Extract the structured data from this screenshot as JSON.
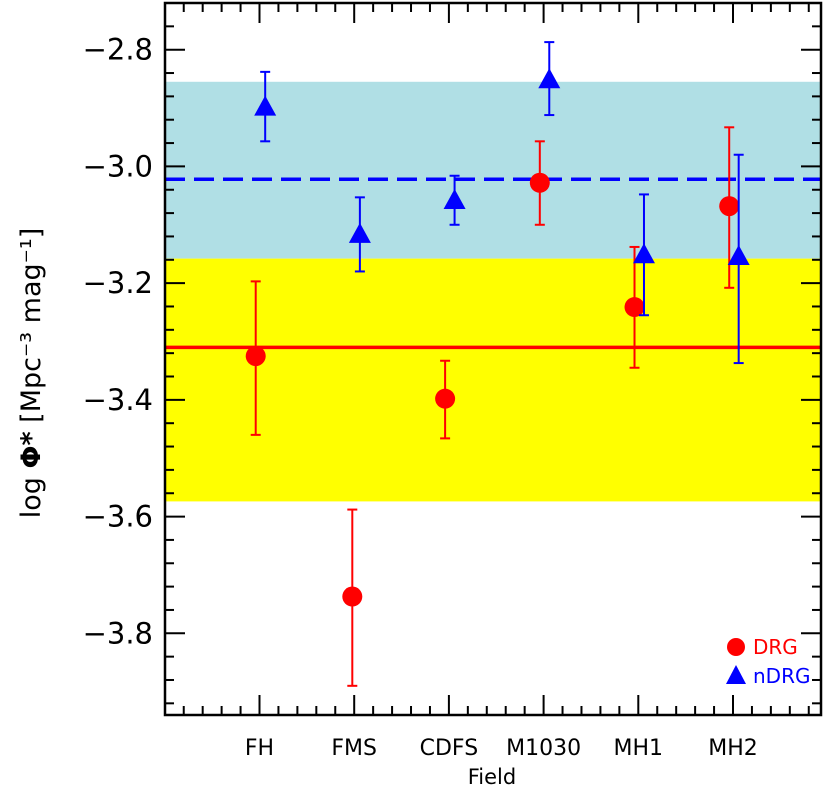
{
  "chart_data": {
    "type": "scatter",
    "title": "",
    "xlabel": "Field",
    "ylabel": "log Φ* [Mpc⁻³ mag⁻¹]",
    "ylabel_parts": {
      "pre": "log ",
      "phi": "Φ*",
      "units": " [Mpc⁻³ mag⁻¹]"
    },
    "categories": [
      "FH",
      "FMS",
      "CDFS",
      "M1030",
      "MH1",
      "MH2"
    ],
    "ylim": [
      -3.94,
      -2.72
    ],
    "yticks": [
      -2.8,
      -3.0,
      -3.2,
      -3.4,
      -3.6,
      -3.8
    ],
    "ytick_labels": [
      "−2.8",
      "−3.0",
      "−3.2",
      "−3.4",
      "−3.6",
      "−3.8"
    ],
    "series": [
      {
        "name": "DRG",
        "marker": "circle",
        "color": "#ff0000",
        "points": [
          {
            "category": "FH",
            "x_offset": -0.04,
            "y": -3.325,
            "y_low": -3.46,
            "y_high": -3.197
          },
          {
            "category": "FMS",
            "x_offset": -0.02,
            "y": -3.737,
            "y_low": -3.89,
            "y_high": -3.588
          },
          {
            "category": "CDFS",
            "x_offset": -0.04,
            "y": -3.398,
            "y_low": -3.466,
            "y_high": -3.333
          },
          {
            "category": "M1030",
            "x_offset": -0.04,
            "y": -3.028,
            "y_low": -3.1,
            "y_high": -2.957
          },
          {
            "category": "MH1",
            "x_offset": -0.04,
            "y": -3.241,
            "y_low": -3.345,
            "y_high": -3.138
          },
          {
            "category": "MH2",
            "x_offset": -0.04,
            "y": -3.068,
            "y_low": -3.208,
            "y_high": -2.933
          }
        ]
      },
      {
        "name": "nDRG",
        "marker": "triangle",
        "color": "#0000ff",
        "points": [
          {
            "category": "FH",
            "x_offset": 0.06,
            "y": -2.9,
            "y_low": -2.957,
            "y_high": -2.838
          },
          {
            "category": "FMS",
            "x_offset": 0.06,
            "y": -3.118,
            "y_low": -3.18,
            "y_high": -3.053
          },
          {
            "category": "CDFS",
            "x_offset": 0.06,
            "y": -3.06,
            "y_low": -3.1,
            "y_high": -3.016
          },
          {
            "category": "M1030",
            "x_offset": 0.06,
            "y": -2.853,
            "y_low": -2.912,
            "y_high": -2.787
          },
          {
            "category": "MH1",
            "x_offset": 0.06,
            "y": -3.153,
            "y_low": -3.255,
            "y_high": -3.048
          },
          {
            "category": "MH2",
            "x_offset": 0.06,
            "y": -3.156,
            "y_low": -3.337,
            "y_high": -2.98
          }
        ]
      }
    ],
    "bands": [
      {
        "color": "#b0dfe5",
        "y_from": -2.855,
        "y_to": -3.158
      },
      {
        "color": "#ffff00",
        "y_from": -3.158,
        "y_to": -3.574
      }
    ],
    "reference_lines": [
      {
        "series": "nDRG",
        "y": -3.022,
        "style": "dashed",
        "color": "#0000ff"
      },
      {
        "series": "DRG",
        "y": -3.31,
        "style": "solid",
        "color": "#ff0000"
      }
    ],
    "legend": {
      "placement": "bottom-right",
      "entries": [
        {
          "label": "DRG",
          "marker": "circle",
          "color": "#ff0000"
        },
        {
          "label": "nDRG",
          "marker": "triangle",
          "color": "#0000ff"
        }
      ]
    },
    "grid": false
  }
}
